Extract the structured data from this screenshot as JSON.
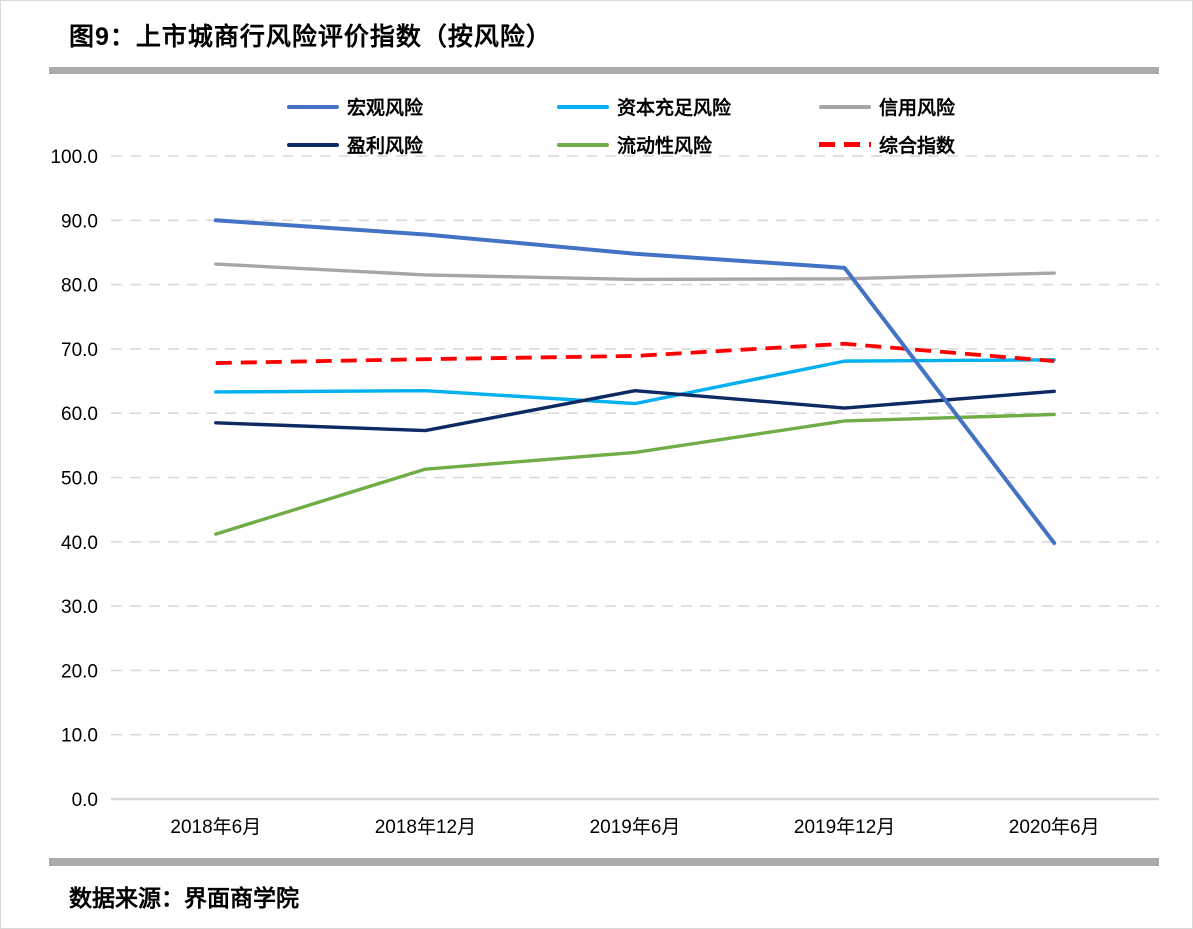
{
  "header": {
    "title": "图9：上市城商行风险评价指数（按风险）"
  },
  "footer": {
    "source": "数据来源：界面商学院"
  },
  "chart_data": {
    "type": "line",
    "title": "图9：上市城商行风险评价指数（按风险）",
    "categories": [
      "2018年6月",
      "2018年12月",
      "2019年6月",
      "2019年12月",
      "2020年6月"
    ],
    "series": [
      {
        "name": "宏观风险",
        "color": "#4472C4",
        "style": "solid",
        "values": [
          90.0,
          87.8,
          84.8,
          82.6,
          39.8
        ]
      },
      {
        "name": "资本充足风险",
        "color": "#00B0F0",
        "style": "solid",
        "values": [
          63.3,
          63.5,
          61.5,
          68.1,
          68.3
        ]
      },
      {
        "name": "信用风险",
        "color": "#A6A6A6",
        "style": "solid",
        "values": [
          83.2,
          81.5,
          80.8,
          80.9,
          81.8
        ]
      },
      {
        "name": "盈利风险",
        "color": "#0E2A63",
        "style": "solid",
        "values": [
          58.5,
          57.3,
          63.5,
          60.8,
          63.4
        ]
      },
      {
        "name": "流动性风险",
        "color": "#70AD47",
        "style": "solid",
        "values": [
          41.2,
          51.3,
          53.9,
          58.8,
          59.8
        ]
      },
      {
        "name": "综合指数",
        "color": "#FF0000",
        "style": "dashed",
        "values": [
          67.8,
          68.4,
          68.9,
          70.8,
          68.1
        ]
      }
    ],
    "ylim": [
      0,
      100
    ],
    "ytick_step": 10,
    "ytick_format_decimals": 1,
    "xlabel": "",
    "ylabel": "",
    "grid": "horizontal-dashed",
    "gridline_color": "#D9D9D9",
    "baseline_color": "#D9D9D9",
    "legend_position": "top",
    "source": "数据来源：界面商学院"
  }
}
